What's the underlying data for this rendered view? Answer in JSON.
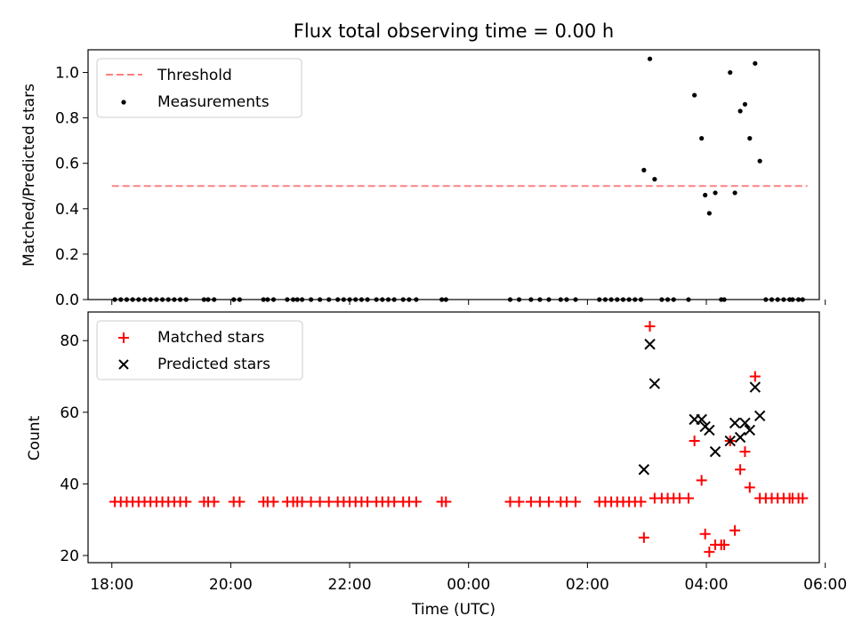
{
  "chart_data": [
    {
      "type": "scatter",
      "title": "Flux total observing time = 0.00 h",
      "xlabel": "",
      "ylabel": "Matched/Predicted stars",
      "xlim_hours": [
        17.6,
        29.9
      ],
      "ylim": [
        0.0,
        1.1
      ],
      "yticks": [
        "0.0",
        "0.2",
        "0.4",
        "0.6",
        "0.8",
        "1.0"
      ],
      "ytick_values": [
        0.0,
        0.2,
        0.4,
        0.6,
        0.8,
        1.0
      ],
      "grid": false,
      "legend_position": "top-left",
      "threshold": {
        "name": "Threshold",
        "value": 0.5,
        "x_range_hours": [
          18.0,
          29.7
        ],
        "color": "#ff8080"
      },
      "series": [
        {
          "name": "Measurements",
          "color": "#000000",
          "marker": "dot",
          "points": [
            [
              18.05,
              0
            ],
            [
              18.15,
              0
            ],
            [
              18.25,
              0
            ],
            [
              18.35,
              0
            ],
            [
              18.45,
              0
            ],
            [
              18.55,
              0
            ],
            [
              18.65,
              0
            ],
            [
              18.75,
              0
            ],
            [
              18.85,
              0
            ],
            [
              18.95,
              0
            ],
            [
              19.05,
              0
            ],
            [
              19.15,
              0
            ],
            [
              19.25,
              0
            ],
            [
              19.55,
              0
            ],
            [
              19.62,
              0
            ],
            [
              19.72,
              0
            ],
            [
              20.05,
              0
            ],
            [
              20.15,
              0
            ],
            [
              20.55,
              0
            ],
            [
              20.62,
              0
            ],
            [
              20.72,
              0
            ],
            [
              20.95,
              0
            ],
            [
              21.05,
              0
            ],
            [
              21.12,
              0
            ],
            [
              21.2,
              0
            ],
            [
              21.35,
              0
            ],
            [
              21.5,
              0
            ],
            [
              21.65,
              0
            ],
            [
              21.8,
              0
            ],
            [
              21.9,
              0
            ],
            [
              22.0,
              0
            ],
            [
              22.1,
              0
            ],
            [
              22.2,
              0
            ],
            [
              22.3,
              0
            ],
            [
              22.45,
              0
            ],
            [
              22.55,
              0
            ],
            [
              22.65,
              0
            ],
            [
              22.75,
              0
            ],
            [
              22.9,
              0
            ],
            [
              23.0,
              0
            ],
            [
              23.12,
              0
            ],
            [
              23.55,
              0
            ],
            [
              23.62,
              0
            ],
            [
              24.7,
              0
            ],
            [
              24.85,
              0
            ],
            [
              25.05,
              0
            ],
            [
              25.2,
              0
            ],
            [
              25.35,
              0
            ],
            [
              25.55,
              0
            ],
            [
              25.65,
              0
            ],
            [
              25.8,
              0
            ],
            [
              26.2,
              0
            ],
            [
              26.3,
              0
            ],
            [
              26.4,
              0
            ],
            [
              26.5,
              0
            ],
            [
              26.6,
              0
            ],
            [
              26.7,
              0
            ],
            [
              26.8,
              0
            ],
            [
              26.9,
              0
            ],
            [
              26.95,
              0.57
            ],
            [
              27.05,
              1.06
            ],
            [
              27.13,
              0.53
            ],
            [
              27.25,
              0
            ],
            [
              27.35,
              0
            ],
            [
              27.45,
              0
            ],
            [
              27.7,
              0
            ],
            [
              27.8,
              0.9
            ],
            [
              27.92,
              0.71
            ],
            [
              27.98,
              0.46
            ],
            [
              28.05,
              0.38
            ],
            [
              28.15,
              0.47
            ],
            [
              28.25,
              0
            ],
            [
              28.3,
              0
            ],
            [
              28.4,
              1.0
            ],
            [
              28.48,
              0.47
            ],
            [
              28.57,
              0.83
            ],
            [
              28.65,
              0.86
            ],
            [
              28.73,
              0.71
            ],
            [
              28.82,
              1.04
            ],
            [
              28.9,
              0.61
            ],
            [
              29.0,
              0
            ],
            [
              29.1,
              0
            ],
            [
              29.2,
              0
            ],
            [
              29.3,
              0
            ],
            [
              29.4,
              0
            ],
            [
              29.45,
              0
            ],
            [
              29.55,
              0
            ],
            [
              29.62,
              0
            ]
          ]
        }
      ]
    },
    {
      "type": "scatter",
      "title": "",
      "xlabel": "Time (UTC)",
      "ylabel": "Count",
      "xlim_hours": [
        17.6,
        29.9
      ],
      "ylim": [
        18,
        88
      ],
      "yticks": [
        "20",
        "40",
        "60",
        "80"
      ],
      "ytick_values": [
        20,
        40,
        60,
        80
      ],
      "xticks": [
        "18:00",
        "20:00",
        "22:00",
        "00:00",
        "02:00",
        "04:00",
        "06:00"
      ],
      "xtick_values_hours": [
        18,
        20,
        22,
        24,
        26,
        28,
        30
      ],
      "grid": false,
      "legend_position": "top-left",
      "series": [
        {
          "name": "Matched stars",
          "color": "#ff0000",
          "marker": "plus",
          "points": [
            [
              18.05,
              35
            ],
            [
              18.15,
              35
            ],
            [
              18.25,
              35
            ],
            [
              18.35,
              35
            ],
            [
              18.45,
              35
            ],
            [
              18.55,
              35
            ],
            [
              18.65,
              35
            ],
            [
              18.75,
              35
            ],
            [
              18.85,
              35
            ],
            [
              18.95,
              35
            ],
            [
              19.05,
              35
            ],
            [
              19.15,
              35
            ],
            [
              19.25,
              35
            ],
            [
              19.55,
              35
            ],
            [
              19.62,
              35
            ],
            [
              19.72,
              35
            ],
            [
              20.05,
              35
            ],
            [
              20.15,
              35
            ],
            [
              20.55,
              35
            ],
            [
              20.62,
              35
            ],
            [
              20.72,
              35
            ],
            [
              20.95,
              35
            ],
            [
              21.05,
              35
            ],
            [
              21.12,
              35
            ],
            [
              21.2,
              35
            ],
            [
              21.35,
              35
            ],
            [
              21.5,
              35
            ],
            [
              21.65,
              35
            ],
            [
              21.8,
              35
            ],
            [
              21.9,
              35
            ],
            [
              22.0,
              35
            ],
            [
              22.1,
              35
            ],
            [
              22.2,
              35
            ],
            [
              22.3,
              35
            ],
            [
              22.45,
              35
            ],
            [
              22.55,
              35
            ],
            [
              22.65,
              35
            ],
            [
              22.75,
              35
            ],
            [
              22.9,
              35
            ],
            [
              23.0,
              35
            ],
            [
              23.12,
              35
            ],
            [
              23.55,
              35
            ],
            [
              23.62,
              35
            ],
            [
              24.7,
              35
            ],
            [
              24.85,
              35
            ],
            [
              25.05,
              35
            ],
            [
              25.2,
              35
            ],
            [
              25.35,
              35
            ],
            [
              25.55,
              35
            ],
            [
              25.65,
              35
            ],
            [
              25.8,
              35
            ],
            [
              26.2,
              35
            ],
            [
              26.3,
              35
            ],
            [
              26.4,
              35
            ],
            [
              26.5,
              35
            ],
            [
              26.6,
              35
            ],
            [
              26.7,
              35
            ],
            [
              26.8,
              35
            ],
            [
              26.9,
              35
            ],
            [
              26.95,
              25
            ],
            [
              27.05,
              84
            ],
            [
              27.13,
              36
            ],
            [
              27.25,
              36
            ],
            [
              27.35,
              36
            ],
            [
              27.45,
              36
            ],
            [
              27.55,
              36
            ],
            [
              27.7,
              36
            ],
            [
              27.8,
              52
            ],
            [
              27.92,
              41
            ],
            [
              27.98,
              26
            ],
            [
              28.05,
              21
            ],
            [
              28.15,
              23
            ],
            [
              28.25,
              23
            ],
            [
              28.3,
              23
            ],
            [
              28.4,
              52
            ],
            [
              28.48,
              27
            ],
            [
              28.57,
              44
            ],
            [
              28.65,
              49
            ],
            [
              28.73,
              39
            ],
            [
              28.82,
              70
            ],
            [
              28.9,
              36
            ],
            [
              29.0,
              36
            ],
            [
              29.1,
              36
            ],
            [
              29.2,
              36
            ],
            [
              29.3,
              36
            ],
            [
              29.4,
              36
            ],
            [
              29.45,
              36
            ],
            [
              29.55,
              36
            ],
            [
              29.62,
              36
            ]
          ]
        },
        {
          "name": "Predicted stars",
          "color": "#000000",
          "marker": "x",
          "points": [
            [
              26.95,
              44
            ],
            [
              27.05,
              79
            ],
            [
              27.13,
              68
            ],
            [
              27.8,
              58
            ],
            [
              27.92,
              58
            ],
            [
              27.98,
              56
            ],
            [
              28.05,
              55
            ],
            [
              28.15,
              49
            ],
            [
              28.4,
              52
            ],
            [
              28.48,
              57
            ],
            [
              28.57,
              53
            ],
            [
              28.65,
              57
            ],
            [
              28.73,
              55
            ],
            [
              28.82,
              67
            ],
            [
              28.9,
              59
            ]
          ]
        }
      ]
    }
  ]
}
